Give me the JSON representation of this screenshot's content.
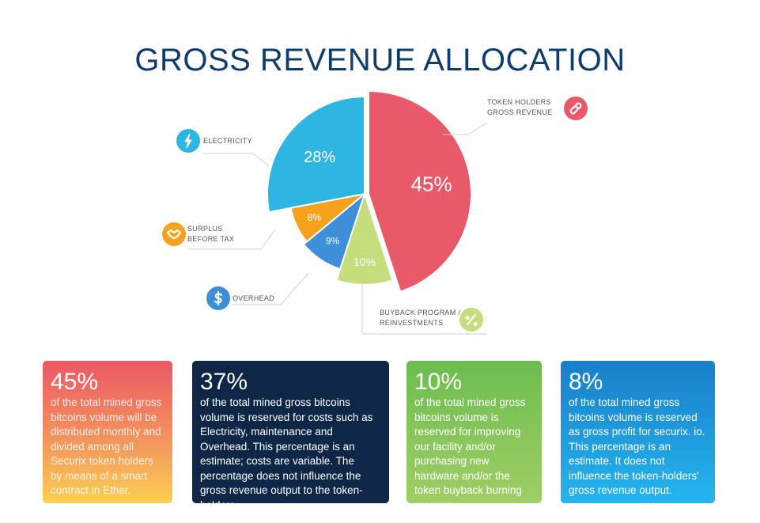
{
  "chart_data": {
    "type": "pie",
    "title": "GROSS REVENUE ALLOCATION",
    "slices": [
      {
        "label_lines": [
          "TOKEN HOLDERS",
          "GROSS REVENUE"
        ],
        "value": 45,
        "display": "45%",
        "color": "#e8596a",
        "icon": "link-icon"
      },
      {
        "label_lines": [
          "BUYBACK PROGRAM /",
          "REINVESTMENTS"
        ],
        "value": 10,
        "display": "10%",
        "color": "#c5dd7a",
        "icon": "percent-icon"
      },
      {
        "label_lines": [
          "OVERHEAD"
        ],
        "value": 9,
        "display": "9%",
        "color": "#3d8fd8",
        "icon": "dollar-icon"
      },
      {
        "label_lines": [
          "SURPLUS",
          "BEFORE TAX"
        ],
        "value": 8,
        "display": "8%",
        "color": "#f6a21e",
        "icon": "handshake-icon"
      },
      {
        "label_lines": [
          "ELECTRICITY"
        ],
        "value": 28,
        "display": "28%",
        "color": "#2db6e2",
        "icon": "lightning-icon"
      }
    ]
  },
  "cards": [
    {
      "percent": "45%",
      "text": "of the total mined gross bitcoins volume will be distributed monthly and divided among all Securix token holders by means of a smart contract in Ether."
    },
    {
      "percent": "37%",
      "text": "of the total mined gross bitcoins volume is reserved for costs such as Electricity, maintenance and Overhead. This percentage is an estimate; costs are variable. The percentage does not influence the gross revenue output to the token-holders."
    },
    {
      "percent": "10%",
      "text": "of the total mined gross bitcoins volume is reserved for improving our facility and/or purchasing new hardware and/or the token buyback burning program."
    },
    {
      "percent": "8%",
      "text": "of the total mined gross bitcoins volume is reserved as gross profit for securix. io. This percentage is an estimate. It does not influence the token-holders' gross revenue output."
    }
  ]
}
